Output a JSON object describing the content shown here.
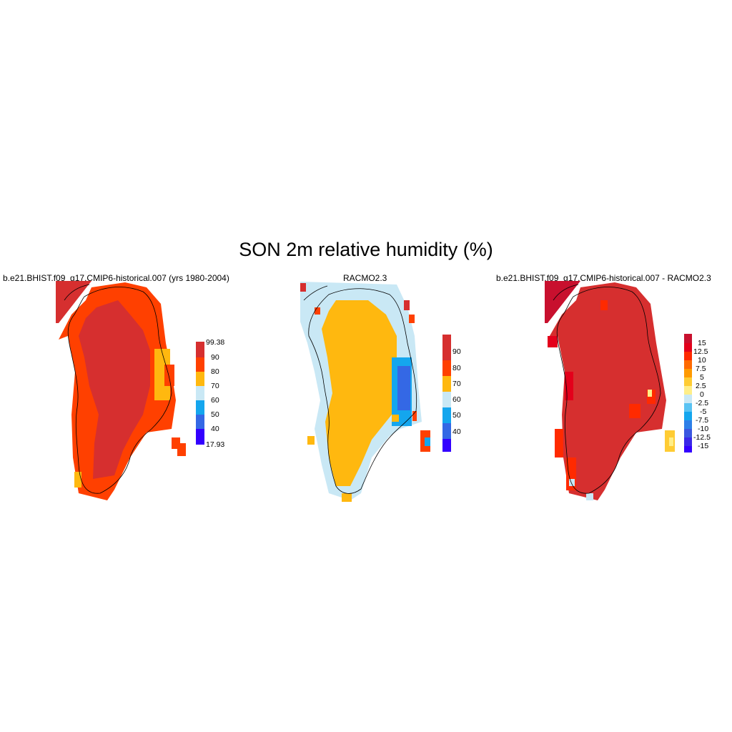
{
  "figure": {
    "title": "SON 2m relative humidity (%)"
  },
  "panels": [
    {
      "title": "b.e21.BHIST.f09_g17.CMIP6-historical.007 (yrs 1980-2004)",
      "colorbar": {
        "labels": [
          "99.38",
          "90",
          "80",
          "70",
          "60",
          "50",
          "40",
          "17.93"
        ],
        "colors": [
          "#d62f2f",
          "#ff4000",
          "#ffb80f",
          "#c9e8f5",
          "#14a6ee",
          "#3468e5",
          "#3300ff"
        ]
      }
    },
    {
      "title": "RACMO2.3",
      "colorbar": {
        "labels": [
          "90",
          "80",
          "70",
          "60",
          "50",
          "40"
        ],
        "colors": [
          "#d62f2f",
          "#ff4000",
          "#ffb80f",
          "#c9e8f5",
          "#14a6ee",
          "#3468e5",
          "#3300ff"
        ]
      }
    },
    {
      "title": "b.e21.BHIST.f09_g17.CMIP6-historical.007 - RACMO2.3",
      "colorbar": {
        "labels": [
          "15",
          "12.5",
          "10",
          "7.5",
          "5",
          "2.5",
          "0",
          "-2.5",
          "-5",
          "-7.5",
          "-10",
          "-12.5",
          "-15"
        ],
        "colors": [
          "#c8102e",
          "#e3001b",
          "#ff2a00",
          "#ff6a00",
          "#ff9a00",
          "#ffcc33",
          "#ffee88",
          "#c9e8f5",
          "#59c3f3",
          "#14a6ee",
          "#2d7fe8",
          "#3a57e0",
          "#3a28e8",
          "#3300ff"
        ]
      }
    }
  ]
}
